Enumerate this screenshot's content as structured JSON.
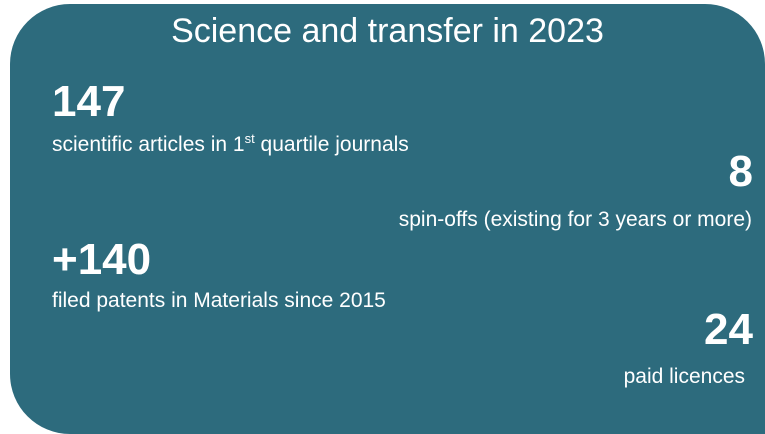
{
  "title": "Science and transfer in 2023",
  "stats": [
    {
      "value": "147",
      "label": [
        "scientific articles in 1",
        "st",
        " quartile journals"
      ]
    },
    {
      "value": "8",
      "label": [
        "spin-offs (existing for 3 years or more)"
      ]
    },
    {
      "value": "+140",
      "label": [
        "filed patents in Materials since 2015"
      ]
    },
    {
      "value": "24",
      "label": [
        "paid licences"
      ]
    }
  ]
}
